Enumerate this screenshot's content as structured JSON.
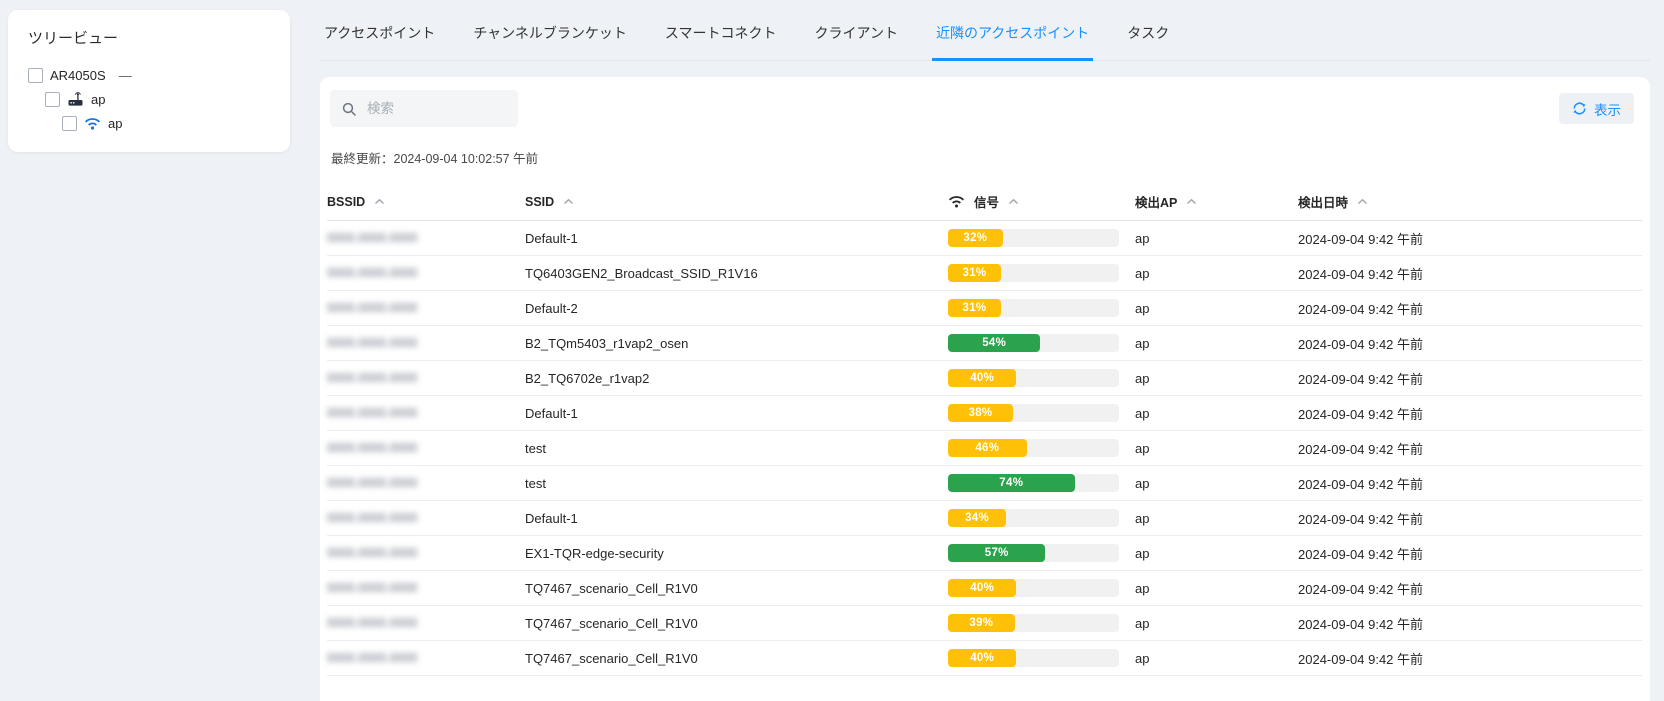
{
  "sidebar": {
    "title": "ツリービュー",
    "tree": [
      {
        "label": "AR4050S",
        "suffix": "—",
        "level": 0,
        "icon": "none"
      },
      {
        "label": "ap",
        "suffix": "",
        "level": 1,
        "icon": "router"
      },
      {
        "label": "ap",
        "suffix": "",
        "level": 2,
        "icon": "wifi"
      }
    ]
  },
  "tabs": [
    {
      "label": "アクセスポイント",
      "active": false
    },
    {
      "label": "チャンネルブランケット",
      "active": false
    },
    {
      "label": "スマートコネクト",
      "active": false
    },
    {
      "label": "クライアント",
      "active": false
    },
    {
      "label": "近隣のアクセスポイント",
      "active": true
    },
    {
      "label": "タスク",
      "active": false
    }
  ],
  "toolbar": {
    "search_placeholder": "検索",
    "show_button": "表示",
    "last_updated": "最終更新：2024-09-04 10:02:57 午前"
  },
  "icons": {
    "search": "magnifier",
    "refresh": "sync-circular-arrows",
    "sort": "chevron-up",
    "signal_header": "wifi",
    "tree_router": "access-point-device",
    "tree_wifi": "wifi"
  },
  "colors": {
    "accent": "#1890ff",
    "signal_low": "#ffc107",
    "signal_high": "#2ba24c",
    "bar_track": "#f1f1f1"
  },
  "table": {
    "columns": {
      "bssid": "BSSID",
      "ssid": "SSID",
      "signal": "信号",
      "detected_ap": "検出AP",
      "detected_at": "検出日時"
    },
    "rows": [
      {
        "bssid_masked": "0000.0000.0000",
        "ssid": "Default-1",
        "signal_pct": 32,
        "detected_ap": "ap",
        "detected_at": "2024-09-04 9:42 午前"
      },
      {
        "bssid_masked": "0000.0000.0000",
        "ssid": "TQ6403GEN2_Broadcast_SSID_R1V16",
        "signal_pct": 31,
        "detected_ap": "ap",
        "detected_at": "2024-09-04 9:42 午前"
      },
      {
        "bssid_masked": "0000.0000.0000",
        "ssid": "Default-2",
        "signal_pct": 31,
        "detected_ap": "ap",
        "detected_at": "2024-09-04 9:42 午前"
      },
      {
        "bssid_masked": "0000.0000.0000",
        "ssid": "B2_TQm5403_r1vap2_osen",
        "signal_pct": 54,
        "detected_ap": "ap",
        "detected_at": "2024-09-04 9:42 午前"
      },
      {
        "bssid_masked": "0000.0000.0000",
        "ssid": "B2_TQ6702e_r1vap2",
        "signal_pct": 40,
        "detected_ap": "ap",
        "detected_at": "2024-09-04 9:42 午前"
      },
      {
        "bssid_masked": "0000.0000.0000",
        "ssid": "Default-1",
        "signal_pct": 38,
        "detected_ap": "ap",
        "detected_at": "2024-09-04 9:42 午前"
      },
      {
        "bssid_masked": "0000.0000.0000",
        "ssid": "test",
        "signal_pct": 46,
        "detected_ap": "ap",
        "detected_at": "2024-09-04 9:42 午前"
      },
      {
        "bssid_masked": "0000.0000.0000",
        "ssid": "test",
        "signal_pct": 74,
        "detected_ap": "ap",
        "detected_at": "2024-09-04 9:42 午前"
      },
      {
        "bssid_masked": "0000.0000.0000",
        "ssid": "Default-1",
        "signal_pct": 34,
        "detected_ap": "ap",
        "detected_at": "2024-09-04 9:42 午前"
      },
      {
        "bssid_masked": "0000.0000.0000",
        "ssid": "EX1-TQR-edge-security",
        "signal_pct": 57,
        "detected_ap": "ap",
        "detected_at": "2024-09-04 9:42 午前"
      },
      {
        "bssid_masked": "0000.0000.0000",
        "ssid": "TQ7467_scenario_Cell_R1V0",
        "signal_pct": 40,
        "detected_ap": "ap",
        "detected_at": "2024-09-04 9:42 午前"
      },
      {
        "bssid_masked": "0000.0000.0000",
        "ssid": "TQ7467_scenario_Cell_R1V0",
        "signal_pct": 39,
        "detected_ap": "ap",
        "detected_at": "2024-09-04 9:42 午前"
      },
      {
        "bssid_masked": "0000.0000.0000",
        "ssid": "TQ7467_scenario_Cell_R1V0",
        "signal_pct": 40,
        "detected_ap": "ap",
        "detected_at": "2024-09-04 9:42 午前"
      }
    ]
  }
}
